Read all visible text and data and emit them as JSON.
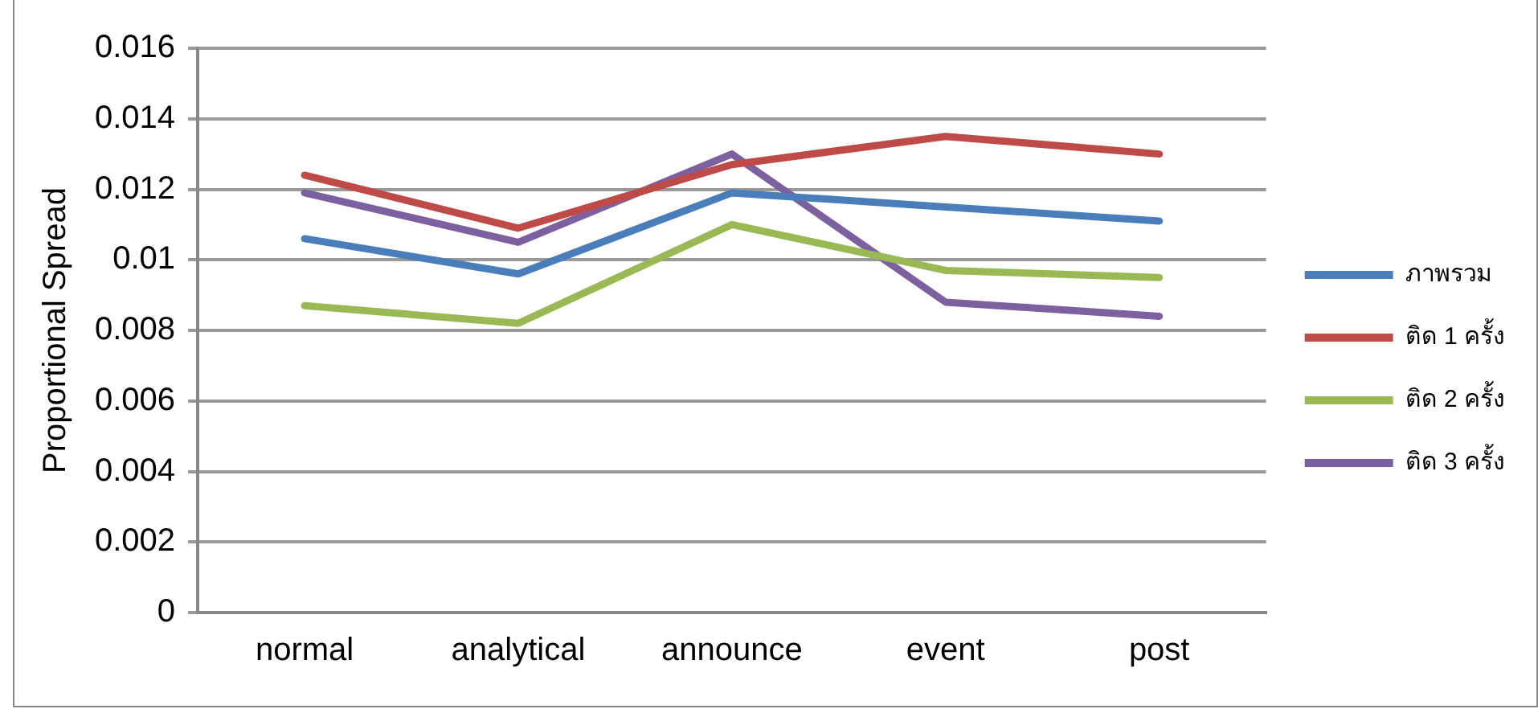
{
  "chart_data": {
    "type": "line",
    "ylabel": "Proportional Spread",
    "categories": [
      "normal",
      "analytical",
      "announce",
      "event",
      "post"
    ],
    "series": [
      {
        "name": "ภาพรวม",
        "color": "#4a7ebb",
        "values": [
          0.0106,
          0.0096,
          0.0119,
          0.0115,
          0.0111
        ]
      },
      {
        "name": "ติด 1 ครั้ง",
        "color": "#be4b48",
        "values": [
          0.0124,
          0.0109,
          0.0127,
          0.0135,
          0.013
        ]
      },
      {
        "name": "ติด 2 ครั้ง",
        "color": "#98b954",
        "values": [
          0.0087,
          0.0082,
          0.011,
          0.0097,
          0.0095
        ]
      },
      {
        "name": "ติด 3 ครั้ง",
        "color": "#7d60a0",
        "values": [
          0.0119,
          0.0105,
          0.013,
          0.0088,
          0.0084
        ]
      }
    ],
    "ylim": [
      0,
      0.016
    ],
    "yticks": [
      0,
      0.002,
      0.004,
      0.006,
      0.008,
      0.01,
      0.012,
      0.014,
      0.016
    ],
    "grid": "y",
    "legend": "right",
    "marker": "none",
    "line_style": "solid"
  }
}
